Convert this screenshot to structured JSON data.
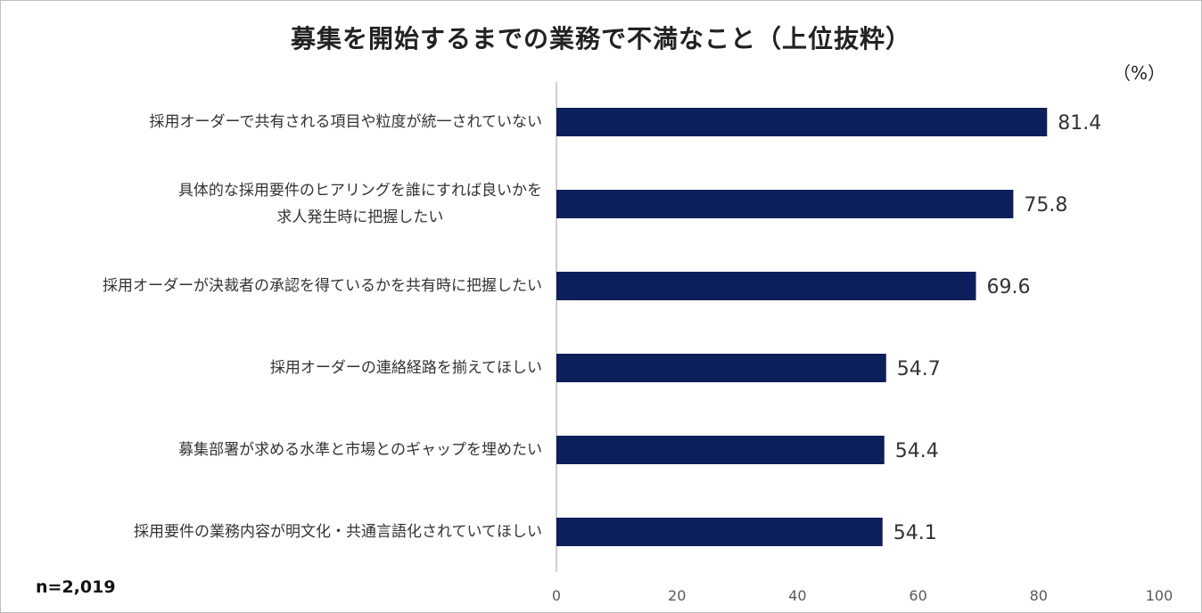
{
  "chart_data": {
    "type": "bar",
    "orientation": "horizontal",
    "title": "募集を開始するまでの業務で不満なこと（上位抜粋）",
    "unit_label": "（%）",
    "sample_note": "n=2,019",
    "categories": [
      [
        "採用オーダーで共有される項目や粒度が統一されていない"
      ],
      [
        "具体的な採用要件のヒアリングを誰にすれば良いかを",
        "求人発生時に把握したい"
      ],
      [
        "採用オーダーが決裁者の承認を得ているかを共有時に把握したい"
      ],
      [
        "採用オーダーの連絡経路を揃えてほしい"
      ],
      [
        "募集部署が求める水準と市場とのギャップを埋めたい"
      ],
      [
        "採用要件の業務内容が明文化・共通言語化されていてほしい"
      ]
    ],
    "values": [
      81.4,
      75.8,
      69.6,
      54.7,
      54.4,
      54.1
    ],
    "value_labels": [
      "81.4",
      "75.8",
      "69.6",
      "54.7",
      "54.4",
      "54.1"
    ],
    "xlim": [
      0,
      100
    ],
    "xticks": [
      0,
      20,
      40,
      60,
      80,
      100
    ],
    "xtick_labels": [
      "0",
      "20",
      "40",
      "60",
      "80",
      "100"
    ],
    "grid": false,
    "bar_color": "#0c1f5a",
    "axis_color": "#bfbfbf"
  }
}
